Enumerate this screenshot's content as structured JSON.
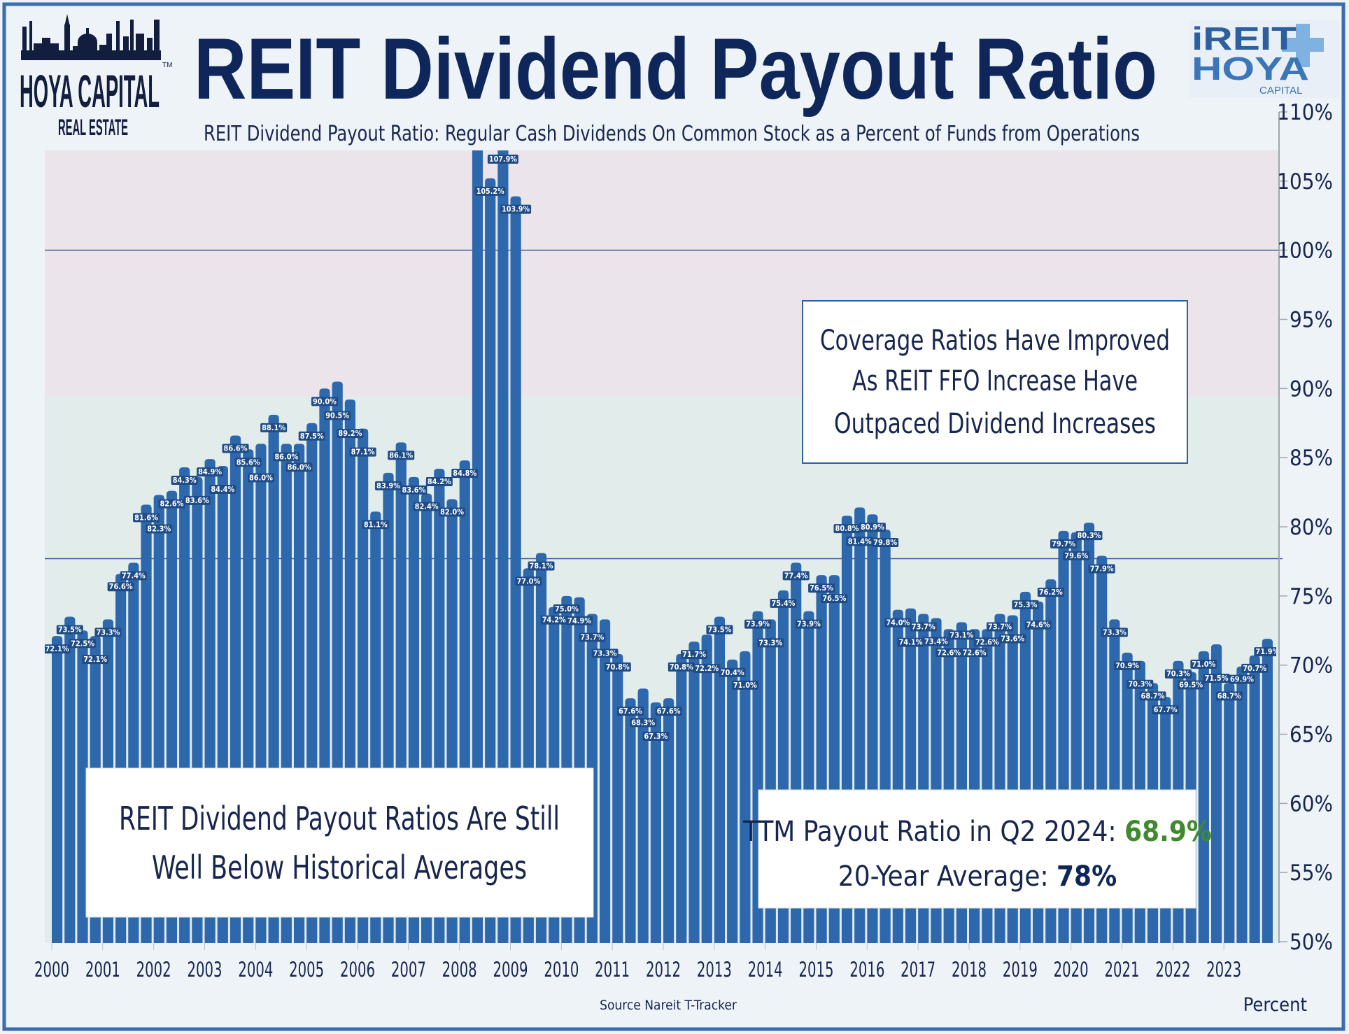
{
  "header": {
    "title": "REIT Dividend Payout Ratio",
    "subtitle": "REIT Dividend Payout Ratio: Regular Cash Dividends On Common Stock as a Percent of Funds from Operations",
    "logo_left": {
      "line1": "HOYA CAPITAL",
      "line2": "REAL ESTATE",
      "tm": "TM"
    },
    "logo_right": {
      "line1": "iREIT",
      "line2": "HOYA",
      "line3": "CAPITAL"
    }
  },
  "annotations": {
    "coverage": [
      "Coverage Ratios Have Improved",
      "As REIT FFO Increase Have",
      "Outpaced Dividend Increases"
    ],
    "historical": [
      "REIT Dividend Payout Ratios Are Still",
      "Well Below Historical Averages"
    ],
    "ttm_label": "TTM Payout Ratio in Q2 2024: ",
    "ttm_value": "68.9%",
    "avg_label": "20-Year Average: ",
    "avg_value": "78%"
  },
  "footer": {
    "source": "Source Nareit T-Tracker",
    "unit": "Percent"
  },
  "colors": {
    "bar": "#2e68ac",
    "label_bg": "#1f4c86",
    "band_high": "#ebe5eb",
    "band_low": "#e2ecea",
    "frame": "#3a6cae",
    "title": "#0e2659",
    "green": "#3e8a2c",
    "line": "#3f5a9a"
  },
  "chart_data": {
    "type": "bar",
    "title": "REIT Dividend Payout Ratio",
    "ylabel": "Percent",
    "ylim": [
      50,
      110
    ],
    "yticks": [
      "50%",
      "55%",
      "60%",
      "65%",
      "70%",
      "75%",
      "80%",
      "85%",
      "90%",
      "95%",
      "100%",
      "105%",
      "110%"
    ],
    "year_labels": [
      "2000",
      "2001",
      "2002",
      "2003",
      "2004",
      "2005",
      "2006",
      "2007",
      "2008",
      "2009",
      "2010",
      "2011",
      "2012",
      "2013",
      "2014",
      "2015",
      "2016",
      "2017",
      "2018",
      "2019",
      "2020",
      "2021",
      "2022",
      "2023"
    ],
    "reference_lines": [
      100,
      77.7
    ],
    "band_boundary": 89.4,
    "values": [
      72.1,
      73.5,
      72.5,
      72.1,
      73.3,
      76.6,
      77.4,
      81.6,
      82.3,
      82.6,
      84.3,
      83.6,
      84.9,
      84.4,
      86.6,
      85.6,
      86.0,
      88.1,
      86.0,
      86.0,
      87.5,
      90.0,
      90.5,
      89.2,
      87.1,
      81.1,
      83.9,
      86.1,
      83.6,
      82.4,
      84.2,
      82.0,
      84.8,
      108.5,
      105.2,
      107.9,
      103.9,
      77.0,
      78.1,
      74.2,
      75.0,
      74.9,
      73.7,
      73.3,
      70.8,
      67.6,
      68.3,
      67.3,
      67.6,
      70.8,
      71.7,
      72.2,
      73.5,
      70.4,
      71.0,
      73.9,
      73.3,
      75.4,
      77.4,
      73.9,
      76.5,
      76.5,
      80.8,
      81.4,
      80.9,
      79.8,
      74.0,
      74.1,
      73.7,
      73.4,
      72.6,
      73.1,
      72.6,
      72.6,
      73.7,
      73.6,
      75.3,
      74.6,
      76.2,
      79.7,
      79.6,
      80.3,
      77.9,
      73.3,
      70.9,
      70.3,
      68.7,
      67.7,
      70.3,
      69.5,
      71.0,
      71.5,
      68.7,
      69.9,
      70.7,
      71.9
    ],
    "labels": [
      "72.1%",
      "73.5%",
      "72.5%",
      "72.1%",
      "73.3%",
      "76.6%",
      "77.4%",
      "81.6%",
      "82.3%",
      "82.6%",
      "84.3%",
      "83.6%",
      "84.9%",
      "84.4%",
      "86.6%",
      "85.6%",
      "86.0%",
      "88.1%",
      "86.0%",
      "86.0%",
      "87.5%",
      "90.0%",
      "90.5%",
      "89.2%",
      "87.1%",
      "81.1%",
      "83.9%",
      "86.1%",
      "83.6%",
      "82.4%",
      "84.2%",
      "82.0%",
      "84.8%",
      "",
      "105.2%",
      "107.9%",
      "103.9%",
      "77.0%",
      "78.1%",
      "74.2%",
      "75.0%",
      "74.9%",
      "73.7%",
      "73.3%",
      "70.8%",
      "67.6%",
      "68.3%",
      "67.3%",
      "67.6%",
      "70.8%",
      "71.7%",
      "72.2%",
      "73.5%",
      "70.4%",
      "71.0%",
      "73.9%",
      "73.3%",
      "75.4%",
      "77.4%",
      "73.9%",
      "76.5%",
      "76.5%",
      "80.8%",
      "81.4%",
      "80.9%",
      "79.8%",
      "74.0%",
      "74.1%",
      "73.7%",
      "73.4%",
      "72.6%",
      "73.1%",
      "72.6%",
      "72.6%",
      "73.7%",
      "73.6%",
      "75.3%",
      "74.6%",
      "76.2%",
      "79.7%",
      "79.6%",
      "80.3%",
      "77.9%",
      "73.3%",
      "70.9%",
      "70.3%",
      "68.7%",
      "67.7%",
      "70.3%",
      "69.5%",
      "71.0%",
      "71.5%",
      "68.7%",
      "69.9%",
      "70.7%",
      "71.9%"
    ],
    "grid": false,
    "legend": "none"
  }
}
